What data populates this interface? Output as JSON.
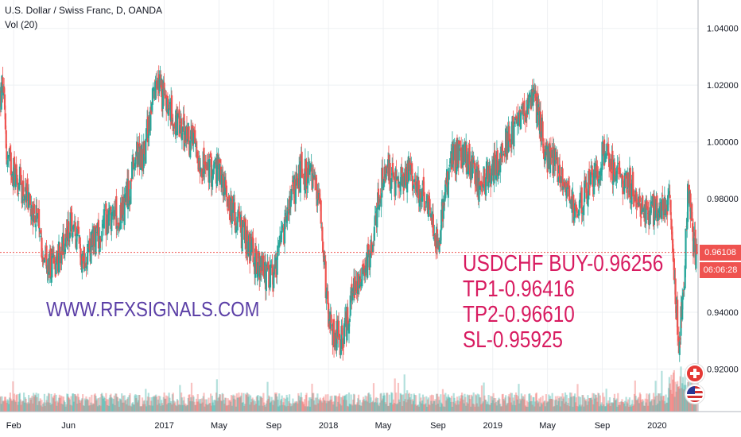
{
  "legend": {
    "title": "U.S. Dollar / Swiss Franc, D, OANDA",
    "volume": "Vol (20)"
  },
  "watermark": "WWW.RFXSIGNALS.COM",
  "signal": {
    "line1": "USDCHF BUY-0.96256",
    "line2": "TP1-0.96416",
    "line3": "TP2-0.96610",
    "line4": "SL-0.95925"
  },
  "price_label": "0.96108",
  "countdown": "06:06:28",
  "colors": {
    "up": "#26a69a",
    "down": "#ef5350",
    "watermark": "#5b3fa6",
    "signal": "#d81b60"
  },
  "icons": [
    "swiss-flag-icon",
    "us-flag-icon"
  ],
  "chart_data": {
    "type": "candlestick",
    "title": "U.S. Dollar / Swiss Franc, D, OANDA",
    "ylim": [
      0.905,
      1.05
    ],
    "y_ticks": [
      1.04,
      1.02,
      1.0,
      0.98,
      0.96,
      0.94,
      0.92
    ],
    "y_tick_labels": [
      "1.04000",
      "1.02000",
      "1.00000",
      "0.98000",
      "0.96000",
      "0.94000",
      "0.92000"
    ],
    "x_tick_labels": [
      "Feb",
      "Jun",
      "2017",
      "May",
      "Sep",
      "2018",
      "May",
      "Sep",
      "2019",
      "May",
      "Sep",
      "2020"
    ],
    "x_ticks_months": [
      1,
      5,
      12,
      16,
      20,
      24,
      28,
      32,
      36,
      40,
      44,
      48
    ],
    "last_price": 0.96108,
    "price_series": {
      "name": "close",
      "x_months": [
        0,
        0.2,
        0.5,
        1.5,
        2.5,
        3.5,
        4.3,
        5.2,
        6.0,
        7.0,
        8.0,
        9.0,
        10.0,
        10.5,
        11.0,
        11.5,
        12.0,
        13.0,
        14.0,
        15.0,
        16.0,
        17.0,
        18.0,
        19.0,
        20.0,
        21.0,
        22.0,
        23.0,
        23.5,
        24.0,
        25.0,
        26.0,
        27.0,
        28.0,
        29.0,
        30.0,
        31.0,
        32.0,
        33.0,
        34.0,
        35.0,
        36.0,
        37.0,
        38.0,
        39.0,
        40.0,
        41.0,
        42.0,
        43.0,
        44.0,
        45.0,
        46.0,
        47.0,
        48.0,
        49.0,
        49.3,
        49.6,
        50.0,
        50.3,
        50.6,
        50.9
      ],
      "values": [
        1.015,
        1.02,
        0.995,
        0.985,
        0.975,
        0.955,
        0.96,
        0.97,
        0.96,
        0.965,
        0.975,
        0.975,
        0.995,
        0.995,
        1.01,
        1.02,
        1.015,
        1.005,
        1.0,
        0.99,
        0.99,
        0.975,
        0.965,
        0.955,
        0.95,
        0.975,
        0.99,
        0.985,
        0.975,
        0.935,
        0.93,
        0.95,
        0.96,
        0.99,
        0.985,
        0.99,
        0.98,
        0.965,
        0.995,
        0.995,
        0.985,
        0.99,
        1.0,
        1.01,
        1.015,
        0.995,
        0.99,
        0.975,
        0.985,
        0.995,
        0.99,
        0.985,
        0.975,
        0.975,
        0.98,
        0.95,
        0.93,
        0.955,
        0.985,
        0.965,
        0.961
      ]
    }
  }
}
